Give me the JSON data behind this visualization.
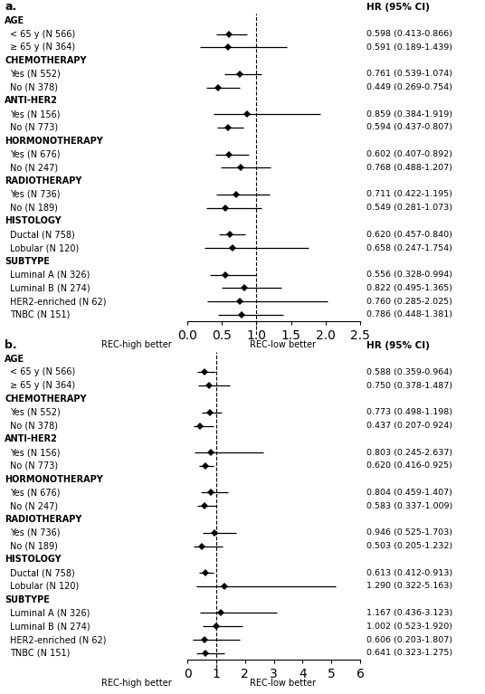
{
  "panel_a": {
    "title": "a.",
    "hr_header": "HR (95% CI)",
    "xlabel_left": "REC-high better",
    "xlabel_right": "REC-low better",
    "xmin": 0.0,
    "xmax": 2.5,
    "xticks": [
      0.0,
      0.5,
      1.0,
      1.5,
      2.0,
      2.5
    ],
    "xticklabels": [
      "0.0",
      "0.5",
      "1.0",
      "1.5",
      "2.0",
      "2.5"
    ],
    "vline": 1.0,
    "rows": [
      {
        "label": "AGE",
        "header": true,
        "hr": null,
        "lo": null,
        "hi": null,
        "text": ""
      },
      {
        "label": "< 65 y (N 566)",
        "header": false,
        "hr": 0.598,
        "lo": 0.413,
        "hi": 0.866,
        "text": "0.598 (0.413-0.866)"
      },
      {
        "label": "≥ 65 y (N 364)",
        "header": false,
        "hr": 0.591,
        "lo": 0.189,
        "hi": 1.439,
        "text": "0.591 (0.189-1.439)"
      },
      {
        "label": "CHEMOTHERAPY",
        "header": true,
        "hr": null,
        "lo": null,
        "hi": null,
        "text": ""
      },
      {
        "label": "Yes (N 552)",
        "header": false,
        "hr": 0.761,
        "lo": 0.539,
        "hi": 1.074,
        "text": "0.761 (0.539-1.074)"
      },
      {
        "label": "No (N 378)",
        "header": false,
        "hr": 0.449,
        "lo": 0.269,
        "hi": 0.754,
        "text": "0.449 (0.269-0.754)"
      },
      {
        "label": "ANTI-HER2",
        "header": true,
        "hr": null,
        "lo": null,
        "hi": null,
        "text": ""
      },
      {
        "label": "Yes (N 156)",
        "header": false,
        "hr": 0.859,
        "lo": 0.384,
        "hi": 1.919,
        "text": "0.859 (0.384-1.919)"
      },
      {
        "label": "No (N 773)",
        "header": false,
        "hr": 0.594,
        "lo": 0.437,
        "hi": 0.807,
        "text": "0.594 (0.437-0.807)"
      },
      {
        "label": "HORMONOTHERAPY",
        "header": true,
        "hr": null,
        "lo": null,
        "hi": null,
        "text": ""
      },
      {
        "label": "Yes (N 676)",
        "header": false,
        "hr": 0.602,
        "lo": 0.407,
        "hi": 0.892,
        "text": "0.602 (0.407-0.892)"
      },
      {
        "label": "No (N 247)",
        "header": false,
        "hr": 0.768,
        "lo": 0.488,
        "hi": 1.207,
        "text": "0.768 (0.488-1.207)"
      },
      {
        "label": "RADIOTHERAPY",
        "header": true,
        "hr": null,
        "lo": null,
        "hi": null,
        "text": ""
      },
      {
        "label": "Yes (N 736)",
        "header": false,
        "hr": 0.711,
        "lo": 0.422,
        "hi": 1.195,
        "text": "0.711 (0.422-1.195)"
      },
      {
        "label": "No (N 189)",
        "header": false,
        "hr": 0.549,
        "lo": 0.281,
        "hi": 1.073,
        "text": "0.549 (0.281-1.073)"
      },
      {
        "label": "HISTOLOGY",
        "header": true,
        "hr": null,
        "lo": null,
        "hi": null,
        "text": ""
      },
      {
        "label": "Ductal (N 758)",
        "header": false,
        "hr": 0.62,
        "lo": 0.457,
        "hi": 0.84,
        "text": "0.620 (0.457-0.840)"
      },
      {
        "label": "Lobular (N 120)",
        "header": false,
        "hr": 0.658,
        "lo": 0.247,
        "hi": 1.754,
        "text": "0.658 (0.247-1.754)"
      },
      {
        "label": "SUBTYPE",
        "header": true,
        "hr": null,
        "lo": null,
        "hi": null,
        "text": ""
      },
      {
        "label": "Luminal A (N 326)",
        "header": false,
        "hr": 0.556,
        "lo": 0.328,
        "hi": 0.994,
        "text": "0.556 (0.328-0.994)"
      },
      {
        "label": "Luminal B (N 274)",
        "header": false,
        "hr": 0.822,
        "lo": 0.495,
        "hi": 1.365,
        "text": "0.822 (0.495-1.365)"
      },
      {
        "label": "HER2-enriched (N 62)",
        "header": false,
        "hr": 0.76,
        "lo": 0.285,
        "hi": 2.025,
        "text": "0.760 (0.285-2.025)"
      },
      {
        "label": "TNBC (N 151)",
        "header": false,
        "hr": 0.786,
        "lo": 0.448,
        "hi": 1.381,
        "text": "0.786 (0.448-1.381)"
      }
    ]
  },
  "panel_b": {
    "title": "b.",
    "hr_header": "HR (95% CI)",
    "xlabel_left": "REC-high better",
    "xlabel_right": "REC-low better",
    "xmin": 0.0,
    "xmax": 6.0,
    "xticks": [
      0,
      1,
      2,
      3,
      4,
      5,
      6
    ],
    "xticklabels": [
      "0",
      "1",
      "2",
      "3",
      "4",
      "5",
      "6"
    ],
    "vline": 1.0,
    "rows": [
      {
        "label": "AGE",
        "header": true,
        "hr": null,
        "lo": null,
        "hi": null,
        "text": ""
      },
      {
        "label": "< 65 y (N 566)",
        "header": false,
        "hr": 0.588,
        "lo": 0.359,
        "hi": 0.964,
        "text": "0.588 (0.359-0.964)"
      },
      {
        "label": "≥ 65 y (N 364)",
        "header": false,
        "hr": 0.75,
        "lo": 0.378,
        "hi": 1.487,
        "text": "0.750 (0.378-1.487)"
      },
      {
        "label": "CHEMOTHERAPY",
        "header": true,
        "hr": null,
        "lo": null,
        "hi": null,
        "text": ""
      },
      {
        "label": "Yes (N 552)",
        "header": false,
        "hr": 0.773,
        "lo": 0.498,
        "hi": 1.198,
        "text": "0.773 (0.498-1.198)"
      },
      {
        "label": "No (N 378)",
        "header": false,
        "hr": 0.437,
        "lo": 0.207,
        "hi": 0.924,
        "text": "0.437 (0.207-0.924)"
      },
      {
        "label": "ANTI-HER2",
        "header": true,
        "hr": null,
        "lo": null,
        "hi": null,
        "text": ""
      },
      {
        "label": "Yes (N 156)",
        "header": false,
        "hr": 0.803,
        "lo": 0.245,
        "hi": 2.637,
        "text": "0.803 (0.245-2.637)"
      },
      {
        "label": "No (N 773)",
        "header": false,
        "hr": 0.62,
        "lo": 0.416,
        "hi": 0.925,
        "text": "0.620 (0.416-0.925)"
      },
      {
        "label": "HORMONOTHERAPY",
        "header": true,
        "hr": null,
        "lo": null,
        "hi": null,
        "text": ""
      },
      {
        "label": "Yes (N 676)",
        "header": false,
        "hr": 0.804,
        "lo": 0.459,
        "hi": 1.407,
        "text": "0.804 (0.459-1.407)"
      },
      {
        "label": "No (N 247)",
        "header": false,
        "hr": 0.583,
        "lo": 0.337,
        "hi": 1.009,
        "text": "0.583 (0.337-1.009)"
      },
      {
        "label": "RADIOTHERAPY",
        "header": true,
        "hr": null,
        "lo": null,
        "hi": null,
        "text": ""
      },
      {
        "label": "Yes (N 736)",
        "header": false,
        "hr": 0.946,
        "lo": 0.525,
        "hi": 1.703,
        "text": "0.946 (0.525-1.703)"
      },
      {
        "label": "No (N 189)",
        "header": false,
        "hr": 0.503,
        "lo": 0.205,
        "hi": 1.232,
        "text": "0.503 (0.205-1.232)"
      },
      {
        "label": "HISTOLOGY",
        "header": true,
        "hr": null,
        "lo": null,
        "hi": null,
        "text": ""
      },
      {
        "label": "Ductal (N 758)",
        "header": false,
        "hr": 0.613,
        "lo": 0.412,
        "hi": 0.913,
        "text": "0.613 (0.412-0.913)"
      },
      {
        "label": "Lobular (N 120)",
        "header": false,
        "hr": 1.29,
        "lo": 0.322,
        "hi": 5.163,
        "text": "1.290 (0.322-5.163)"
      },
      {
        "label": "SUBTYPE",
        "header": true,
        "hr": null,
        "lo": null,
        "hi": null,
        "text": ""
      },
      {
        "label": "Luminal A (N 326)",
        "header": false,
        "hr": 1.167,
        "lo": 0.436,
        "hi": 3.123,
        "text": "1.167 (0.436-3.123)"
      },
      {
        "label": "Luminal B (N 274)",
        "header": false,
        "hr": 1.002,
        "lo": 0.523,
        "hi": 1.92,
        "text": "1.002 (0.523-1.920)"
      },
      {
        "label": "HER2-enriched (N 62)",
        "header": false,
        "hr": 0.606,
        "lo": 0.203,
        "hi": 1.807,
        "text": "0.606 (0.203-1.807)"
      },
      {
        "label": "TNBC (N 151)",
        "header": false,
        "hr": 0.641,
        "lo": 0.323,
        "hi": 1.275,
        "text": "0.641 (0.323-1.275)"
      }
    ]
  },
  "fig_width": 5.36,
  "fig_height": 7.67,
  "dpi": 100
}
